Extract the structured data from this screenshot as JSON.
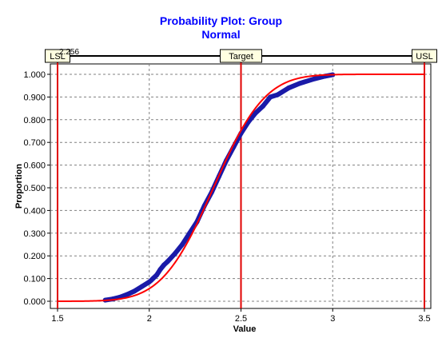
{
  "chart_data": {
    "type": "scatter",
    "title": "Probability Plot: Group",
    "subtitle": "Normal",
    "xlabel": "Value",
    "ylabel": "Proportion",
    "xlim": [
      1.5,
      3.5
    ],
    "ylim": [
      0.0,
      1.0
    ],
    "x_ticks": [
      "1.5",
      "2",
      "2.5",
      "3",
      "3.5"
    ],
    "y_ticks": [
      "0.000",
      "0.100",
      "0.200",
      "0.300",
      "0.400",
      "0.500",
      "0.600",
      "0.700",
      "0.800",
      "0.900",
      "1.000"
    ],
    "grid": true,
    "corner_label": "2.256",
    "spec_limits": [
      {
        "label": "LSL",
        "value": 1.5
      },
      {
        "label": "Target",
        "value": 2.5
      },
      {
        "label": "USL",
        "value": 3.5
      }
    ],
    "fit_curve": {
      "mean": 2.35,
      "sd": 0.22,
      "xmin": 1.5,
      "xmax": 3.5
    },
    "observed": [
      [
        1.76,
        0.005
      ],
      [
        1.8,
        0.01
      ],
      [
        1.84,
        0.018
      ],
      [
        1.88,
        0.03
      ],
      [
        1.92,
        0.045
      ],
      [
        1.96,
        0.065
      ],
      [
        2.0,
        0.085
      ],
      [
        2.01,
        0.092
      ],
      [
        2.02,
        0.1
      ],
      [
        2.04,
        0.115
      ],
      [
        2.06,
        0.14
      ],
      [
        2.08,
        0.16
      ],
      [
        2.1,
        0.175
      ],
      [
        2.14,
        0.21
      ],
      [
        2.18,
        0.25
      ],
      [
        2.22,
        0.3
      ],
      [
        2.26,
        0.35
      ],
      [
        2.3,
        0.42
      ],
      [
        2.34,
        0.48
      ],
      [
        2.38,
        0.55
      ],
      [
        2.42,
        0.62
      ],
      [
        2.46,
        0.68
      ],
      [
        2.5,
        0.74
      ],
      [
        2.54,
        0.79
      ],
      [
        2.58,
        0.83
      ],
      [
        2.62,
        0.86
      ],
      [
        2.66,
        0.9
      ],
      [
        2.7,
        0.91
      ],
      [
        2.76,
        0.94
      ],
      [
        2.82,
        0.96
      ],
      [
        2.9,
        0.98
      ],
      [
        2.96,
        0.992
      ],
      [
        3.0,
        0.998
      ]
    ],
    "colors": {
      "points": "#1a1aa8",
      "fit_line": "#ff0000",
      "spec_line": "#e00000",
      "grid": "#808080",
      "title": "#0000ff",
      "label_box": "#ffffe0"
    }
  }
}
